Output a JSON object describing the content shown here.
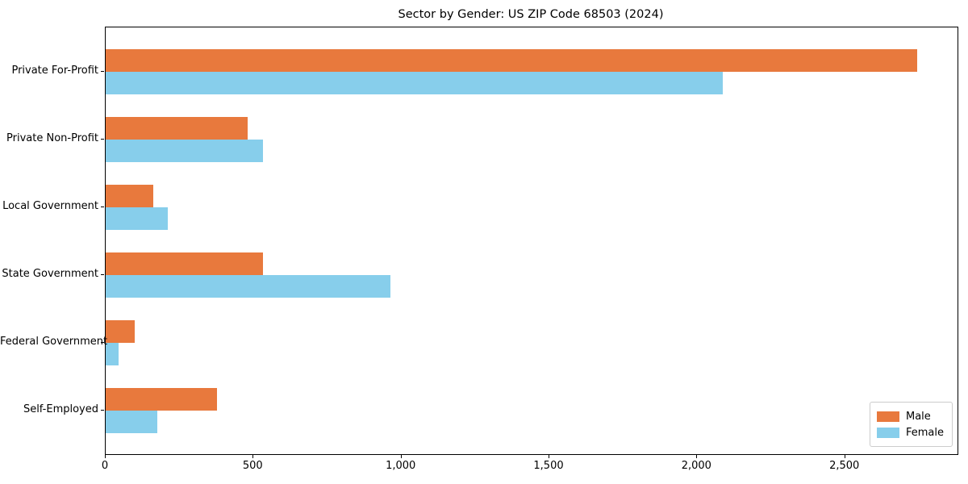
{
  "chart_data": {
    "type": "bar",
    "orientation": "horizontal",
    "title": "Sector by Gender: US ZIP Code 68503 (2024)",
    "categories": [
      "Private For-Profit",
      "Private Non-Profit",
      "Local Government",
      "State Government",
      "Federal Government",
      "Self-Employed"
    ],
    "series": [
      {
        "name": "Male",
        "color": "#e8793d",
        "values": [
          2744,
          479,
          162,
          532,
          98,
          377
        ]
      },
      {
        "name": "Female",
        "color": "#87ceeb",
        "values": [
          2085,
          532,
          211,
          963,
          43,
          175
        ]
      }
    ],
    "xlabel": "",
    "ylabel": "",
    "xlim": [
      0,
      2880
    ],
    "xticks": [
      0,
      500,
      1000,
      1500,
      2000,
      2500
    ],
    "xtick_labels": [
      "0",
      "500",
      "1,000",
      "1,500",
      "2,000",
      "2,500"
    ],
    "grid": false,
    "legend_position": "lower right",
    "background_color": "#ffffff",
    "frame_color": "#000000"
  }
}
